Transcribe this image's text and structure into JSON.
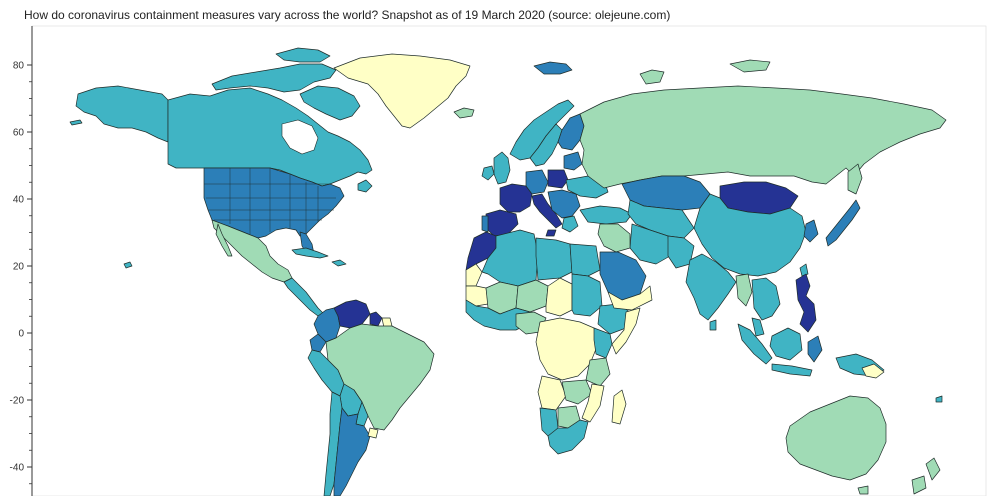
{
  "title": "How do coronavirus containment measures vary across the world? Snapshot as of 19 March 2020 (source: olejeune.com)",
  "y_axis": {
    "ticks": [
      {
        "value": 80,
        "label": "80"
      },
      {
        "value": 60,
        "label": "60"
      },
      {
        "value": 40,
        "label": "40"
      },
      {
        "value": 20,
        "label": "20"
      },
      {
        "value": 0,
        "label": "0"
      },
      {
        "value": -20,
        "label": "-20"
      },
      {
        "value": -40,
        "label": "-40"
      }
    ]
  },
  "colors": {
    "level_1": "#ffffc6",
    "level_2": "#a0dbb5",
    "level_3": "#40b4c4",
    "level_4": "#2c7fb8",
    "level_5": "#253394"
  },
  "regions": [
    {
      "name": "Greenland",
      "level": 1
    },
    {
      "name": "Canada",
      "level": 3
    },
    {
      "name": "Alaska",
      "level": 3
    },
    {
      "name": "United States",
      "level": 4
    },
    {
      "name": "Mexico",
      "level": 2
    },
    {
      "name": "Venezuela",
      "level": 5
    },
    {
      "name": "Colombia",
      "level": 4
    },
    {
      "name": "Brazil",
      "level": 2
    },
    {
      "name": "Spain",
      "level": 5
    },
    {
      "name": "France",
      "level": 5
    },
    {
      "name": "Italy",
      "level": 5
    },
    {
      "name": "Morocco",
      "level": 5
    },
    {
      "name": "Russia",
      "level": 2
    },
    {
      "name": "Mongolia",
      "level": 5
    },
    {
      "name": "Kazakhstan",
      "level": 4
    },
    {
      "name": "China",
      "level": 3
    },
    {
      "name": "India",
      "level": 3
    },
    {
      "name": "Saudi Arabia",
      "level": 4
    },
    {
      "name": "Philippines",
      "level": 5
    },
    {
      "name": "Indonesia",
      "level": 3
    },
    {
      "name": "Australia",
      "level": 2
    },
    {
      "name": "Central Africa",
      "level": 1
    },
    {
      "name": "South Africa",
      "level": 3
    }
  ]
}
